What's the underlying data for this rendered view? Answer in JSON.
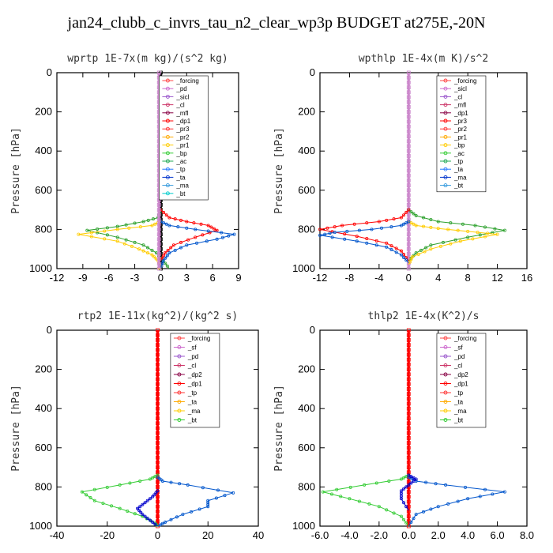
{
  "title": "jan24_clubb_c_invrs_tau_n2_clear_wp3p  BUDGET at275E,-20N",
  "chart_data": [
    {
      "type": "line",
      "title": "wprtp  1E-7x(m kg)/(s^2 kg)",
      "ylabel": "Pressure [hPa]",
      "xlim": [
        -12,
        9
      ],
      "ylim": [
        1000,
        0
      ],
      "xticks": [
        -12,
        -9,
        -6,
        -3,
        0,
        3,
        6,
        9
      ],
      "yticks": [
        0,
        200,
        400,
        600,
        800,
        1000
      ],
      "legend": [
        "_forcing",
        "_pd",
        "_sicl",
        "_cl",
        "_mfl",
        "_dp1",
        "_pr3",
        "_pr2",
        "_pr1",
        "_bp",
        "_ac",
        "_tp",
        "_ta",
        "_ma",
        "_bt"
      ],
      "series": [
        {
          "name": "_forcing",
          "color": "#000000",
          "x": [
            0,
            0
          ],
          "y": [
            0,
            1000
          ]
        },
        {
          "name": "_bp",
          "color": "#2ca02c",
          "x": [
            0,
            -0.3,
            -2,
            -5,
            -8.5,
            -5,
            -2,
            -0.5,
            0.3,
            1
          ],
          "y": [
            700,
            740,
            760,
            785,
            805,
            840,
            880,
            920,
            960,
            1000
          ]
        },
        {
          "name": "_ac",
          "color": "#ffcc00",
          "x": [
            0,
            -1,
            -5,
            -9.5,
            -5,
            -2.5,
            -1,
            -0.3,
            0,
            -0.3
          ],
          "y": [
            760,
            780,
            800,
            825,
            860,
            900,
            930,
            960,
            990,
            1000
          ]
        },
        {
          "name": "_pr1",
          "color": "#ff0000",
          "x": [
            0,
            1,
            3,
            5.5,
            6.5,
            4,
            1.5,
            0.5,
            0
          ],
          "y": [
            700,
            740,
            760,
            780,
            805,
            840,
            880,
            920,
            960
          ]
        },
        {
          "name": "_ta",
          "color": "#0055cc",
          "x": [
            0,
            1,
            4,
            8.5,
            6.5,
            3,
            1,
            0.3,
            0
          ],
          "y": [
            760,
            780,
            800,
            825,
            850,
            880,
            920,
            960,
            1000
          ]
        },
        {
          "name": "_sicl",
          "color": "#cc88cc",
          "x": [
            -0.2,
            -0.2
          ],
          "y": [
            0,
            1000
          ]
        }
      ]
    },
    {
      "type": "line",
      "title": "wpthlp  1E-4x(m K)/s^2",
      "ylabel": "Pressure [hPa]",
      "xlim": [
        -12,
        16
      ],
      "ylim": [
        1000,
        0
      ],
      "xticks": [
        -12,
        -8,
        -4,
        0,
        4,
        8,
        12,
        16
      ],
      "yticks": [
        0,
        200,
        400,
        600,
        800,
        1000
      ],
      "legend": [
        "_forcing",
        "_sicl",
        "_cl",
        "_mfl",
        "_dp1",
        "_pr3",
        "_pr2",
        "_pr1",
        "_bp",
        "_ac",
        "_tp",
        "_ta",
        "_ma",
        "_bt"
      ],
      "series": [
        {
          "name": "_forcing",
          "color": "#cc88cc",
          "x": [
            0,
            0
          ],
          "y": [
            0,
            1000
          ]
        },
        {
          "name": "_bp",
          "color": "#2ca02c",
          "x": [
            0,
            1,
            4,
            9,
            13,
            8,
            3,
            1,
            0
          ],
          "y": [
            700,
            730,
            760,
            780,
            805,
            840,
            880,
            920,
            960
          ]
        },
        {
          "name": "_ac",
          "color": "#ffcc00",
          "x": [
            0,
            1,
            4,
            8,
            12,
            7,
            3,
            0.5,
            0
          ],
          "y": [
            760,
            780,
            795,
            810,
            825,
            860,
            900,
            940,
            980
          ]
        },
        {
          "name": "_pr1",
          "color": "#ff0000",
          "x": [
            0,
            -1,
            -4,
            -9,
            -12,
            -7,
            -3,
            -1,
            0
          ],
          "y": [
            700,
            740,
            760,
            780,
            800,
            835,
            870,
            910,
            960
          ]
        },
        {
          "name": "_ta",
          "color": "#0055cc",
          "x": [
            0,
            -1,
            -5,
            -10,
            -12,
            -7,
            -3,
            -1,
            0
          ],
          "y": [
            760,
            780,
            800,
            815,
            830,
            860,
            890,
            930,
            970
          ]
        }
      ]
    },
    {
      "type": "line",
      "title": "rtp2  1E-11x(kg^2)/(kg^2 s)",
      "ylabel": "Pressure [hPa]",
      "xlim": [
        -40,
        40
      ],
      "ylim": [
        1000,
        0
      ],
      "xticks": [
        -40,
        -20,
        0,
        20,
        40
      ],
      "yticks": [
        0,
        200,
        400,
        600,
        800,
        1000
      ],
      "legend": [
        "_forcing",
        "_sf",
        "_pd",
        "_cl",
        "_dp2",
        "_dp1",
        "_tp",
        "_ta",
        "_ma",
        "_bt"
      ],
      "series": [
        {
          "name": "_forcing",
          "color": "#ff0000",
          "x": [
            0,
            0
          ],
          "y": [
            0,
            1000
          ]
        },
        {
          "name": "_dp1",
          "color": "#33cc33",
          "x": [
            0,
            -3,
            -15,
            -30,
            -25,
            -15,
            -6,
            -1,
            0
          ],
          "y": [
            740,
            760,
            790,
            825,
            870,
            910,
            950,
            985,
            1000
          ]
        },
        {
          "name": "_tp",
          "color": "#0055cc",
          "x": [
            0,
            2,
            12,
            30,
            20,
            20,
            10,
            3,
            0
          ],
          "y": [
            750,
            770,
            790,
            830,
            870,
            900,
            940,
            980,
            1000
          ]
        },
        {
          "name": "_ta",
          "color": "#0000cc",
          "x": [
            0,
            -2,
            -5,
            -8,
            -6,
            -3,
            0
          ],
          "y": [
            820,
            850,
            880,
            910,
            940,
            970,
            1000
          ]
        }
      ]
    },
    {
      "type": "line",
      "title": "thlp2  1E-4x(K^2)/s",
      "ylabel": "Pressure [hPa]",
      "xlim": [
        -6.0,
        8.0
      ],
      "ylim": [
        1000,
        0
      ],
      "xticks": [
        -6.0,
        -4.0,
        -2.0,
        0.0,
        2.0,
        4.0,
        6.0,
        8.0
      ],
      "yticks": [
        0,
        200,
        400,
        600,
        800,
        1000
      ],
      "legend": [
        "_forcing",
        "_sf",
        "_pd",
        "_cl",
        "_dp2",
        "_dp1",
        "_tp",
        "_ta",
        "_ma",
        "_bt"
      ],
      "series": [
        {
          "name": "_forcing",
          "color": "#ff0000",
          "x": [
            0,
            0
          ],
          "y": [
            0,
            1000
          ]
        },
        {
          "name": "_dp1",
          "color": "#33cc33",
          "x": [
            0,
            -0.5,
            -3,
            -5.8,
            -4,
            -2,
            -0.5,
            0
          ],
          "y": [
            740,
            760,
            790,
            825,
            860,
            900,
            950,
            1000
          ]
        },
        {
          "name": "_tp",
          "color": "#0055cc",
          "x": [
            0,
            0.5,
            2.5,
            6.5,
            4,
            2,
            0.5,
            0
          ],
          "y": [
            750,
            770,
            790,
            825,
            860,
            900,
            940,
            1000
          ]
        },
        {
          "name": "_ta",
          "color": "#0000cc",
          "x": [
            0,
            0.5,
            0,
            -0.5,
            -0.5,
            0
          ],
          "y": [
            740,
            760,
            790,
            820,
            860,
            920
          ]
        }
      ]
    }
  ]
}
